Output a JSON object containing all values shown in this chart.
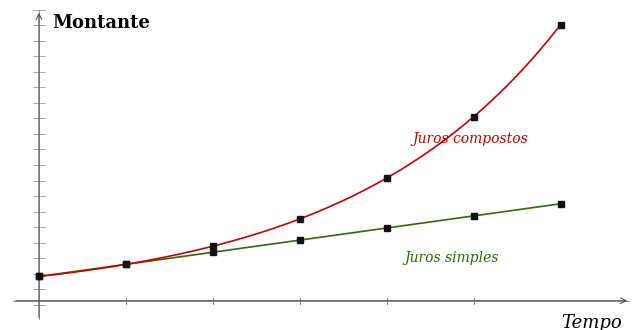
{
  "title": "",
  "xlabel": "Tempo",
  "ylabel": "Montante",
  "background_color": "#ffffff",
  "rate": 0.5,
  "principal": 1.0,
  "t_end": 6,
  "dot_times": [
    0,
    1,
    2,
    3,
    4,
    5,
    6
  ],
  "simple_color": "#2d6a00",
  "compound_color": "#cc0000",
  "dot_color": "#111111",
  "label_simple": "Juros simples",
  "label_compound": "Juros compostos",
  "label_fontsize": 10,
  "ylabel_fontsize": 13,
  "xlabel_fontsize": 13,
  "dot_size": 4,
  "linewidth": 1.2,
  "xlim": [
    -0.3,
    6.8
  ],
  "ylim": [
    -0.8,
    12.0
  ],
  "tick_positions": [
    1,
    2,
    3,
    4,
    5
  ],
  "ytick_count": 20
}
